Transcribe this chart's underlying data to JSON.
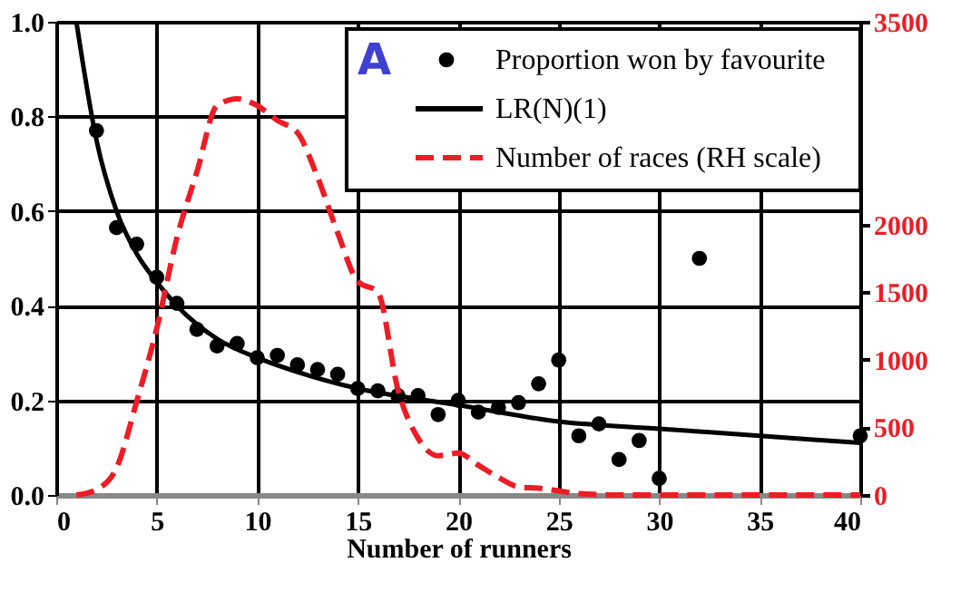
{
  "chart_data": {
    "type": "scatter",
    "xlabel": "Number of runners",
    "xlim": [
      0,
      40
    ],
    "xticks": [
      0,
      5,
      10,
      15,
      20,
      25,
      30,
      35,
      40
    ],
    "ylim": [
      0,
      1
    ],
    "yticks": [
      {
        "value": 0,
        "label": "0.0"
      },
      0.2,
      0.4,
      0.6,
      0.8,
      {
        "value": 1,
        "label": "1.0"
      }
    ],
    "y2lim": [
      0,
      3500
    ],
    "y2ticks": [
      0,
      500,
      1000,
      1500,
      2000,
      3500
    ],
    "grid": true,
    "legend": "top right",
    "annotations": [
      "A"
    ],
    "series": [
      {
        "name": "Proportion won by favourite",
        "color": "#000000",
        "marker": "circle",
        "x": [
          2,
          3,
          4,
          5,
          6,
          7,
          8,
          9,
          10,
          11,
          12,
          13,
          14,
          15,
          16,
          17,
          18,
          19,
          20,
          21,
          22,
          23,
          24,
          25,
          26,
          27,
          28,
          29,
          30,
          32,
          40
        ],
        "values": [
          0.77,
          0.565,
          0.53,
          0.46,
          0.405,
          0.35,
          0.315,
          0.32,
          0.29,
          0.295,
          0.275,
          0.265,
          0.255,
          0.225,
          0.22,
          0.21,
          0.21,
          0.17,
          0.2,
          0.175,
          0.185,
          0.195,
          0.235,
          0.285,
          0.125,
          0.15,
          0.075,
          0.115,
          0.035,
          0.5,
          0.125
        ]
      },
      {
        "name": "LR(N)(1)",
        "type": "line",
        "color": "#000000",
        "line_style": "solid",
        "marker": "none",
        "x": [
          1,
          2,
          3,
          4,
          5,
          6,
          8,
          10,
          12,
          15,
          20,
          25,
          30,
          35,
          40
        ],
        "values": [
          1.0,
          0.75,
          0.6,
          0.51,
          0.45,
          0.4,
          0.33,
          0.29,
          0.26,
          0.225,
          0.19,
          0.155,
          0.14,
          0.125,
          0.11
        ]
      },
      {
        "name": "Number of races (RH scale)",
        "type": "line",
        "axis": "y2",
        "color": "#ee1c25",
        "line_style": "dashed",
        "marker": "none",
        "x": [
          1,
          2,
          3,
          4,
          5,
          6,
          7,
          8,
          9,
          10,
          11,
          12,
          13,
          14,
          15,
          16,
          17,
          18,
          19,
          20,
          21,
          22,
          23,
          24,
          25,
          26,
          28,
          30,
          35,
          40
        ],
        "values": [
          0,
          40,
          200,
          690,
          1230,
          1900,
          2390,
          2880,
          2930,
          2880,
          2770,
          2680,
          2350,
          1940,
          1580,
          1500,
          780,
          420,
          290,
          310,
          220,
          130,
          60,
          50,
          30,
          10,
          0,
          0,
          0,
          0
        ]
      }
    ]
  }
}
